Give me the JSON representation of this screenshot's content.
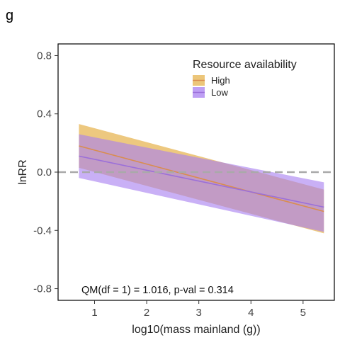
{
  "panel_label": "g",
  "chart_data": {
    "type": "line",
    "title": "",
    "xlabel": "log10(mass mainland (g))",
    "ylabel": "lnRR",
    "xlim": [
      0.3,
      5.6
    ],
    "ylim": [
      -0.88,
      0.88
    ],
    "xticks": [
      1,
      2,
      3,
      4,
      5
    ],
    "xtick_labels": [
      "1",
      "2",
      "3",
      "4",
      "5"
    ],
    "yticks": [
      0.8,
      0.4,
      0.0,
      -0.4,
      -0.8
    ],
    "ytick_labels": [
      "0.8",
      "0.4",
      "0.0",
      "-0.4",
      "-0.8"
    ],
    "grid": false,
    "reference_line": {
      "y": 0.0,
      "style": "dashed",
      "color": "#a9a9a9"
    },
    "legend": {
      "title": "Resource availability",
      "placement": "top-right",
      "entries": [
        "High",
        "Low"
      ]
    },
    "annotation": "QM(df = 1) = 1.016, p-val = 0.314",
    "series": [
      {
        "name": "High",
        "color": "#e6b34d",
        "line_color": "#d98d4f",
        "x": [
          0.7,
          5.4
        ],
        "y": [
          0.18,
          -0.27
        ],
        "ci_lower": [
          0.03,
          -0.42
        ],
        "ci_upper": [
          0.33,
          -0.12
        ]
      },
      {
        "name": "Low",
        "color": "#a87ff0",
        "line_color": "#9b6fd9",
        "x": [
          0.7,
          5.4
        ],
        "y": [
          0.11,
          -0.24
        ],
        "ci_lower": [
          -0.04,
          -0.41
        ],
        "ci_upper": [
          0.26,
          -0.07
        ]
      }
    ]
  }
}
